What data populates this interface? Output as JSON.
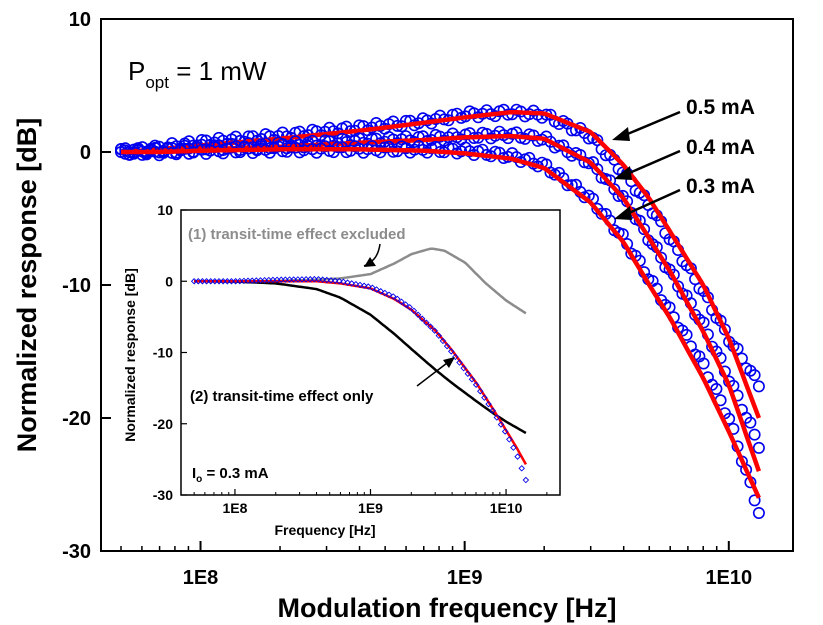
{
  "chart_data": [
    {
      "type": "scatter",
      "xlabel": "Modulation frequency [Hz]",
      "ylabel": "Normalized response [dB]",
      "x_scale": "log",
      "xlim": [
        42000000.0,
        17500000000.0
      ],
      "ylim": [
        -30,
        10
      ],
      "xticks": [
        100000000.0,
        1000000000.0,
        10000000000.0
      ],
      "xtick_labels": [
        "1E8",
        "1E9",
        "1E10"
      ],
      "yticks": [
        -30,
        -20,
        -10,
        0,
        10
      ],
      "ytick_labels": [
        "-30",
        "-20",
        "-10",
        "0",
        "10"
      ],
      "annotation": {
        "main": "P",
        "sub": "opt",
        "rest": " = 1 mW"
      },
      "series": [
        {
          "name": "0.5 mA",
          "color_measured": "#0000ee",
          "color_fit": "#ff0000",
          "x": [
            50000000.0,
            70000000.0,
            100000000.0,
            200000000.0,
            400000000.0,
            700000000.0,
            1000000000.0,
            1500000000.0,
            2000000000.0,
            3000000000.0,
            4000000000.0,
            5000000000.0,
            6000000000.0,
            8000000000.0,
            10000000000.0,
            13000000000.0
          ],
          "measured": [
            0.0,
            0.3,
            0.7,
            1.2,
            1.8,
            2.3,
            2.8,
            3.0,
            2.8,
            1.2,
            -1.5,
            -4.0,
            -6.5,
            -10.5,
            -14.0,
            -17.5
          ],
          "fit": [
            0.0,
            0.2,
            0.5,
            1.0,
            1.6,
            2.2,
            2.6,
            3.0,
            2.9,
            1.5,
            -1.0,
            -3.5,
            -6.0,
            -10.0,
            -14.0,
            -20.0
          ]
        },
        {
          "name": "0.4 mA",
          "color_measured": "#0000ee",
          "color_fit": "#ff0000",
          "x": [
            50000000.0,
            70000000.0,
            100000000.0,
            200000000.0,
            400000000.0,
            700000000.0,
            1000000000.0,
            1500000000.0,
            2000000000.0,
            3000000000.0,
            4000000000.0,
            5000000000.0,
            6000000000.0,
            8000000000.0,
            10000000000.0,
            13000000000.0
          ],
          "measured": [
            0.0,
            0.1,
            0.3,
            0.5,
            0.8,
            1.0,
            1.2,
            1.3,
            1.0,
            -0.8,
            -3.5,
            -6.5,
            -9.0,
            -13.0,
            -17.0,
            -22.0
          ],
          "fit": [
            0.0,
            0.1,
            0.2,
            0.4,
            0.7,
            0.9,
            1.1,
            1.2,
            1.0,
            -0.8,
            -3.5,
            -6.5,
            -9.0,
            -13.5,
            -17.5,
            -24.0
          ]
        },
        {
          "name": "0.3 mA",
          "color_measured": "#0000ee",
          "color_fit": "#ff0000",
          "x": [
            50000000.0,
            70000000.0,
            100000000.0,
            200000000.0,
            400000000.0,
            700000000.0,
            1000000000.0,
            1500000000.0,
            2000000000.0,
            3000000000.0,
            4000000000.0,
            5000000000.0,
            6000000000.0,
            8000000000.0,
            10000000000.0,
            13000000000.0
          ],
          "measured": [
            0.0,
            0.0,
            0.1,
            0.2,
            0.2,
            0.2,
            0.1,
            -0.3,
            -1.0,
            -3.5,
            -6.5,
            -9.5,
            -12.0,
            -16.0,
            -20.0,
            -27.0
          ],
          "fit": [
            0.0,
            0.0,
            0.1,
            0.2,
            0.2,
            0.1,
            -0.1,
            -0.5,
            -1.2,
            -3.8,
            -6.8,
            -10.0,
            -12.5,
            -17.0,
            -21.0,
            -26.0
          ]
        }
      ]
    },
    {
      "type": "line",
      "xlabel": "Frequency [Hz]",
      "ylabel": "Normalized response [dB]",
      "x_scale": "log",
      "xlim": [
        40000000.0,
        25000000000.0
      ],
      "ylim": [
        -30,
        10
      ],
      "xticks": [
        100000000.0,
        1000000000.0,
        10000000000.0
      ],
      "xtick_labels": [
        "1E8",
        "1E9",
        "1E10"
      ],
      "yticks": [
        -30,
        -20,
        -10,
        0,
        10
      ],
      "ytick_labels": [
        "-30",
        "-20",
        "-10",
        "0",
        "10"
      ],
      "annotations": {
        "gray": "(1) transit-time effect excluded",
        "black": "(2) transit-time effect only",
        "current_prefix": "I",
        "current_sub": "o",
        "current_rest": " = 0.3 mA"
      },
      "series": [
        {
          "color": "#8c8c8c",
          "x": [
            50000000.0,
            100000000.0,
            200000000.0,
            400000000.0,
            600000000.0,
            1000000000.0,
            1500000000.0,
            2000000000.0,
            2800000000.0,
            3500000000.0,
            5000000000.0,
            7000000000.0,
            10000000000.0,
            14000000000.0
          ],
          "values": [
            0.0,
            0.0,
            0.05,
            0.2,
            0.4,
            1.0,
            2.5,
            3.8,
            4.6,
            4.3,
            2.6,
            -0.2,
            -2.7,
            -4.5
          ]
        },
        {
          "color": "#000000",
          "x": [
            50000000.0,
            100000000.0,
            200000000.0,
            400000000.0,
            600000000.0,
            1000000000.0,
            1500000000.0,
            2000000000.0,
            3000000000.0,
            4000000000.0,
            6000000000.0,
            8000000000.0,
            10000000000.0,
            14000000000.0
          ],
          "values": [
            0.0,
            -0.05,
            -0.3,
            -1.1,
            -2.3,
            -4.7,
            -7.4,
            -9.5,
            -12.4,
            -14.3,
            -16.8,
            -18.5,
            -19.7,
            -21.3
          ]
        },
        {
          "color": "#ff0000",
          "x": [
            50000000.0,
            100000000.0,
            200000000.0,
            400000000.0,
            600000000.0,
            1000000000.0,
            1500000000.0,
            2000000000.0,
            3000000000.0,
            4000000000.0,
            5000000000.0,
            6000000000.0,
            8000000000.0,
            10000000000.0,
            12000000000.0,
            14000000000.0
          ],
          "values": [
            0.0,
            0.0,
            0.0,
            0.0,
            -0.3,
            -1.0,
            -2.5,
            -4.0,
            -6.9,
            -9.7,
            -12.2,
            -14.2,
            -17.9,
            -20.9,
            -23.4,
            -25.7
          ]
        },
        {
          "color": "#0000ee",
          "marker": "diamond",
          "x": [
            50000000.0,
            100000000.0,
            200000000.0,
            400000000.0,
            600000000.0,
            1000000000.0,
            1500000000.0,
            2000000000.0,
            3000000000.0,
            4000000000.0,
            5000000000.0,
            6000000000.0,
            8000000000.0,
            10000000000.0,
            12000000000.0,
            14000000000.0
          ],
          "values": [
            0.0,
            0.0,
            0.2,
            0.3,
            0.0,
            -0.8,
            -2.2,
            -3.8,
            -7.0,
            -10.0,
            -12.5,
            -14.5,
            -18.2,
            -21.3,
            -24.3,
            -27.9
          ]
        }
      ]
    }
  ]
}
